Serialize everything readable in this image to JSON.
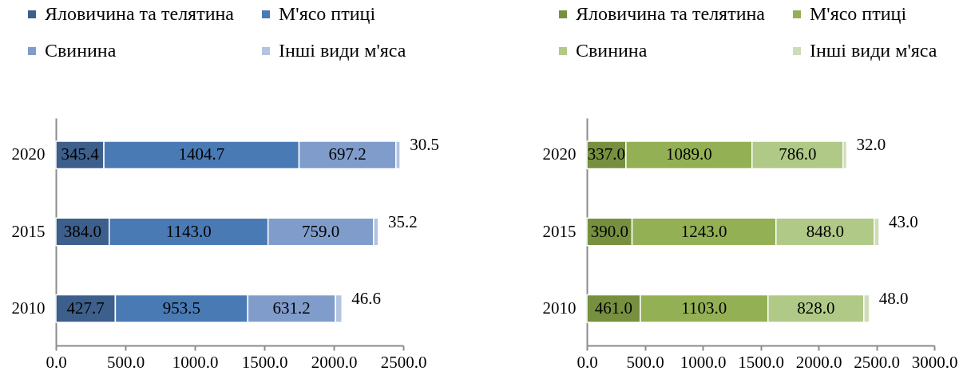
{
  "chart_data": [
    {
      "type": "bar",
      "orientation": "horizontal",
      "stacked": true,
      "categories": [
        "2020",
        "2015",
        "2010"
      ],
      "series": [
        {
          "name": "Яловичина та телятина",
          "color": "#3d5f8c",
          "values": [
            345.4,
            384.0,
            427.7
          ],
          "value_labels": [
            "345.4",
            "384.0",
            "427.7"
          ]
        },
        {
          "name": "М'ясо птиці",
          "color": "#4a7ab4",
          "values": [
            1404.7,
            1143.0,
            953.5
          ],
          "value_labels": [
            "1404.7",
            "1143.0",
            "953.5"
          ]
        },
        {
          "name": "Свинина",
          "color": "#7f9ccb",
          "values": [
            697.2,
            759.0,
            631.2
          ],
          "value_labels": [
            "697.2",
            "759.0",
            "631.2"
          ]
        },
        {
          "name": "Інші види м'яса",
          "color": "#b3c3e0",
          "values": [
            30.5,
            35.2,
            46.6
          ],
          "value_labels": [
            "30.5",
            "35.2",
            "46.6"
          ]
        }
      ],
      "xlim": [
        0,
        2500
      ],
      "xticks": [
        {
          "value": 0,
          "label": "0.0"
        },
        {
          "value": 500,
          "label": "500.0"
        },
        {
          "value": 1000,
          "label": "1000.0"
        },
        {
          "value": 1500,
          "label": "1500.0"
        },
        {
          "value": 2000,
          "label": "2000.0"
        },
        {
          "value": 2500,
          "label": "2500.0"
        }
      ],
      "legend": "top",
      "grid": false
    },
    {
      "type": "bar",
      "orientation": "horizontal",
      "stacked": true,
      "categories": [
        "2020",
        "2015",
        "2010"
      ],
      "series": [
        {
          "name": "Яловичина та телятина",
          "color": "#77903f",
          "values": [
            337.0,
            390.0,
            461.0
          ],
          "value_labels": [
            "337.0",
            "390.0",
            "461.0"
          ]
        },
        {
          "name": "М'ясо птиці",
          "color": "#94b055",
          "values": [
            1089.0,
            1243.0,
            1103.0
          ],
          "value_labels": [
            "1089.0",
            "1243.0",
            "1103.0"
          ]
        },
        {
          "name": "Свинина",
          "color": "#b0c986",
          "values": [
            786.0,
            848.0,
            828.0
          ],
          "value_labels": [
            "786.0",
            "848.0",
            "828.0"
          ]
        },
        {
          "name": "Інші види м'яса",
          "color": "#cfdcb8",
          "values": [
            32.0,
            43.0,
            48.0
          ],
          "value_labels": [
            "32.0",
            "43.0",
            "48.0"
          ]
        }
      ],
      "xlim": [
        0,
        3000
      ],
      "xticks": [
        {
          "value": 0,
          "label": "0.0"
        },
        {
          "value": 500,
          "label": "500.0"
        },
        {
          "value": 1000,
          "label": "1000.0"
        },
        {
          "value": 1500,
          "label": "1500.0"
        },
        {
          "value": 2000,
          "label": "2000.0"
        },
        {
          "value": 2500,
          "label": "2500.0"
        },
        {
          "value": 3000,
          "label": "3000.0"
        }
      ],
      "legend": "top",
      "grid": false
    }
  ]
}
